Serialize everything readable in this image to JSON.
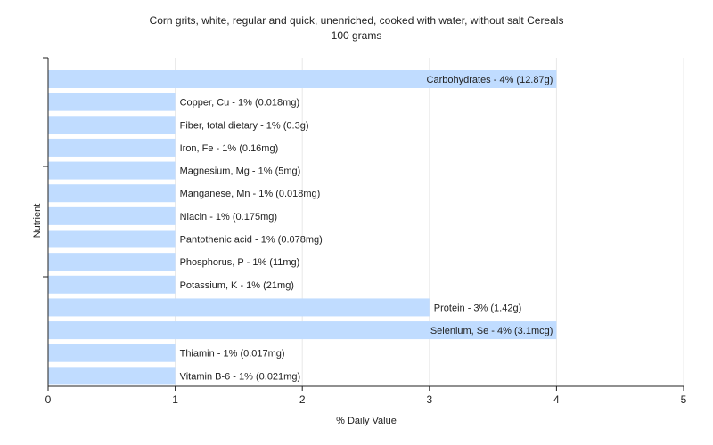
{
  "chart_data": {
    "type": "bar",
    "orientation": "horizontal",
    "title": "Corn grits, white, regular and quick, unenriched, cooked with water, without salt Cereals",
    "subtitle": "100 grams",
    "xlabel": "% Daily Value",
    "ylabel": "Nutrient",
    "xlim": [
      0,
      5
    ],
    "xticks": [
      "0",
      "1",
      "2",
      "3",
      "4",
      "5"
    ],
    "grid": true,
    "bar_color": "#c0dcff",
    "categories": [
      "Carbohydrates",
      "Copper, Cu",
      "Fiber, total dietary",
      "Iron, Fe",
      "Magnesium, Mg",
      "Manganese, Mn",
      "Niacin",
      "Pantothenic acid",
      "Phosphorus, P",
      "Potassium, K",
      "Protein",
      "Selenium, Se",
      "Thiamin",
      "Vitamin B-6"
    ],
    "values": [
      4,
      1,
      1,
      1,
      1,
      1,
      1,
      1,
      1,
      1,
      3,
      4,
      1,
      1
    ],
    "labels": [
      "Carbohydrates - 4% (12.87g)",
      "Copper, Cu - 1% (0.018mg)",
      "Fiber, total dietary - 1% (0.3g)",
      "Iron, Fe - 1% (0.16mg)",
      "Magnesium, Mg - 1% (5mg)",
      "Manganese, Mn - 1% (0.018mg)",
      "Niacin - 1% (0.175mg)",
      "Pantothenic acid - 1% (0.078mg)",
      "Phosphorus, P - 1% (11mg)",
      "Potassium, K - 1% (21mg)",
      "Protein - 3% (1.42g)",
      "Selenium, Se - 4% (3.1mcg)",
      "Thiamin - 1% (0.017mg)",
      "Vitamin B-6 - 1% (0.021mg)"
    ]
  }
}
